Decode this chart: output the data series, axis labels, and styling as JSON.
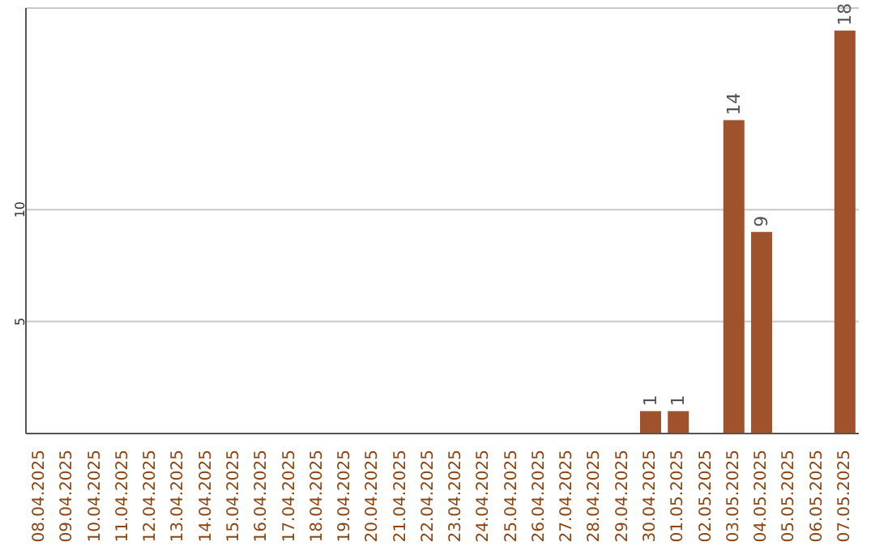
{
  "chart_data": {
    "type": "bar",
    "categories": [
      "08.04.2025",
      "09.04.2025",
      "10.04.2025",
      "11.04.2025",
      "12.04.2025",
      "13.04.2025",
      "14.04.2025",
      "15.04.2025",
      "16.04.2025",
      "17.04.2025",
      "18.04.2025",
      "19.04.2025",
      "20.04.2025",
      "21.04.2025",
      "22.04.2025",
      "23.04.2025",
      "24.04.2025",
      "25.04.2025",
      "26.04.2025",
      "27.04.2025",
      "28.04.2025",
      "29.04.2025",
      "30.04.2025",
      "01.05.2025",
      "02.05.2025",
      "03.05.2025",
      "04.05.2025",
      "05.05.2025",
      "06.05.2025",
      "07.05.2025"
    ],
    "values": [
      0,
      0,
      0,
      0,
      0,
      0,
      0,
      0,
      0,
      0,
      0,
      0,
      0,
      0,
      0,
      0,
      0,
      0,
      0,
      0,
      0,
      0,
      1,
      1,
      0,
      14,
      9,
      0,
      0,
      18
    ],
    "value_labels": [
      null,
      null,
      null,
      null,
      null,
      null,
      null,
      null,
      null,
      null,
      null,
      null,
      null,
      null,
      null,
      null,
      null,
      null,
      null,
      null,
      null,
      null,
      "1",
      "1",
      null,
      "14",
      "9",
      null,
      null,
      "18"
    ],
    "color": "#a0522d",
    "ylim": [
      0,
      19
    ],
    "yticks": [
      5,
      10
    ],
    "grid": "y"
  }
}
